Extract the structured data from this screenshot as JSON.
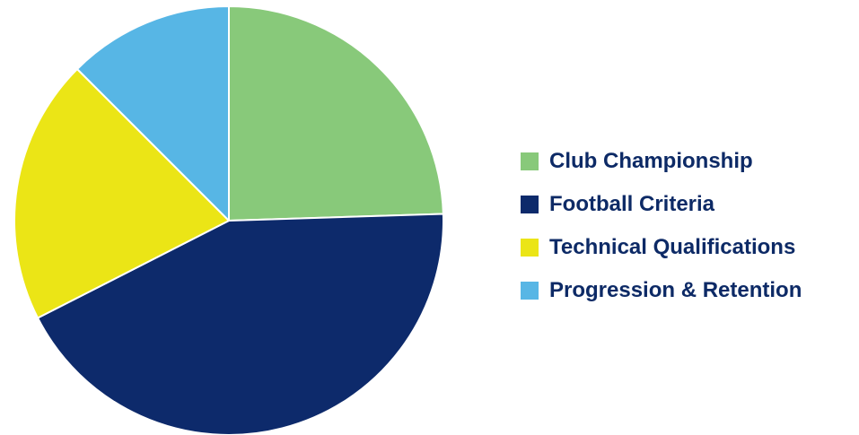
{
  "chart_data": {
    "type": "pie",
    "title": "",
    "start_angle_deg": 0,
    "direction": "clockwise",
    "slice_border_color": "#ffffff",
    "slices": [
      {
        "label": "Club Championship",
        "value": 24.5,
        "color": "#88c97a"
      },
      {
        "label": "Football Criteria",
        "value": 43.0,
        "color": "#0d2a6b"
      },
      {
        "label": "Technical Qualifications",
        "value": 20.0,
        "color": "#ebe516"
      },
      {
        "label": "Progression & Retention",
        "value": 12.5,
        "color": "#57b6e5"
      }
    ],
    "legend": {
      "placement": "right",
      "entries": [
        {
          "label": "Club Championship",
          "color": "#88c97a"
        },
        {
          "label": "Football Criteria",
          "color": "#0d2a6b"
        },
        {
          "label": "Technical Qualifications",
          "color": "#ebe516"
        },
        {
          "label": "Progression & Retention",
          "color": "#57b6e5"
        }
      ],
      "text_color": "#0d2a66"
    }
  }
}
